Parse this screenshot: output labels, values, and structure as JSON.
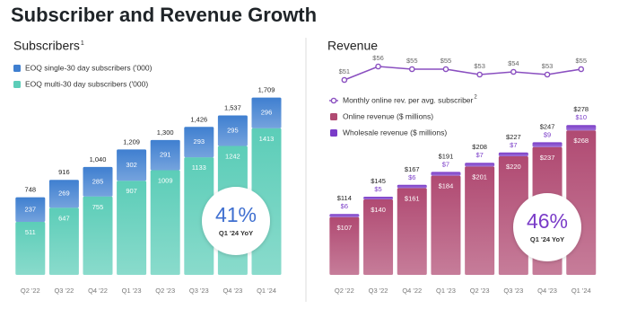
{
  "title": "Subscriber and Revenue Growth",
  "chart_data": [
    {
      "type": "bar",
      "title": "Subscribers",
      "title_note": "1",
      "categories": [
        "Q2 '22",
        "Q3 '22",
        "Q4 '22",
        "Q1 '23",
        "Q2 '23",
        "Q3 '23",
        "Q4 '23",
        "Q1 '24"
      ],
      "series": [
        {
          "name": "EOQ single-30 day subscribers ('000)",
          "color": "#3f7fd0",
          "values": [
            237,
            269,
            285,
            302,
            291,
            293,
            295,
            296
          ]
        },
        {
          "name": "EOQ multi-30 day subscribers  ('000)",
          "color": "#5ccdb8",
          "values": [
            511,
            647,
            755,
            907,
            1009,
            1133,
            1242,
            1413
          ]
        }
      ],
      "totals": {
        "values": [
          748,
          916,
          1040,
          1209,
          1300,
          1426,
          1537,
          1709
        ],
        "value_labels": [
          "748",
          "916",
          "1,040",
          "1,209",
          "1,300",
          "1,426",
          "1,537",
          "1,709"
        ]
      },
      "badge": {
        "value": "41%",
        "label": "Q1 '24 YoY",
        "color": "#3f6fd0"
      }
    },
    {
      "type": "combo",
      "title": "Revenue",
      "categories": [
        "Q2 '22",
        "Q3 '22",
        "Q4 '22",
        "Q1 '23",
        "Q2 '23",
        "Q3 '23",
        "Q4 '23",
        "Q1 '24"
      ],
      "series": [
        {
          "name": "Monthly online rev. per avg. subscriber",
          "name_note": "2",
          "type": "line",
          "color": "#8a4fc0",
          "values": [
            51,
            56,
            55,
            55,
            53,
            54,
            53,
            55
          ],
          "value_labels": [
            "$51",
            "$56",
            "$55",
            "$55",
            "$53",
            "$54",
            "$53",
            "$55"
          ]
        },
        {
          "name": "Online revenue ($ millions)",
          "type": "bar",
          "color": "#b04a72",
          "values": [
            107,
            140,
            161,
            184,
            201,
            220,
            237,
            268
          ],
          "value_labels": [
            "$107",
            "$140",
            "$161",
            "$184",
            "$201",
            "$220",
            "$237",
            "$268"
          ]
        },
        {
          "name": "Wholesale revenue ($ millions)",
          "type": "bar",
          "color": "#7a3cc8",
          "values": [
            6,
            5,
            6,
            7,
            7,
            7,
            9,
            10
          ],
          "value_labels": [
            "$6",
            "$5",
            "$6",
            "$7",
            "$7",
            "$7",
            "$9",
            "$10"
          ]
        }
      ],
      "totals": {
        "values": [
          114,
          145,
          167,
          191,
          208,
          227,
          247,
          278
        ],
        "value_labels": [
          "$114",
          "$145",
          "$167",
          "$191",
          "$208",
          "$227",
          "$247",
          "$278"
        ]
      },
      "badge": {
        "value": "46%",
        "label": "Q1 '24 YoY",
        "color": "#7a3cc8"
      }
    }
  ]
}
